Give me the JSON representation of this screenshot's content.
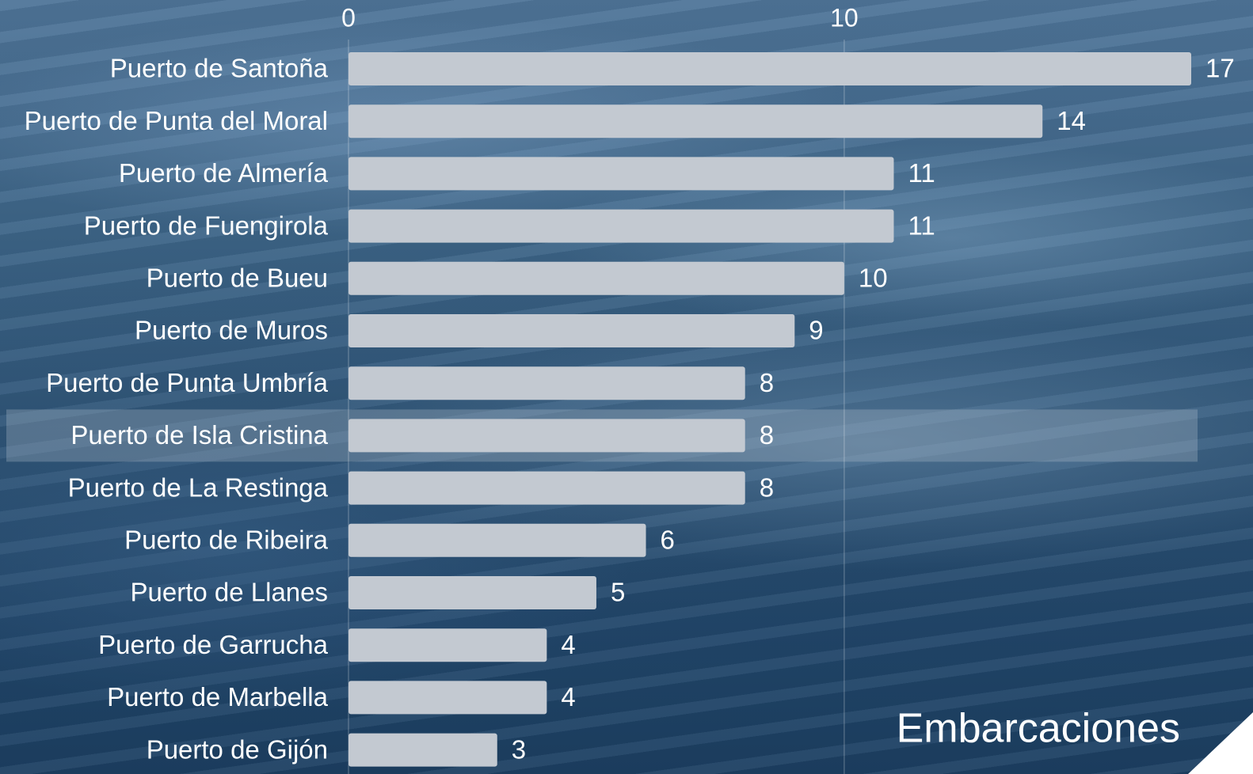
{
  "chart_data": {
    "type": "bar",
    "orientation": "horizontal",
    "x_axis_label": "Embarcaciones",
    "categories": [
      "Puerto de Santoña",
      "Puerto de Punta del Moral",
      "Puerto de Almería",
      "Puerto de Fuengirola",
      "Puerto de Bueu",
      "Puerto de Muros",
      "Puerto de Punta Umbría",
      "Puerto de Isla Cristina",
      "Puerto de La Restinga",
      "Puerto de Ribeira",
      "Puerto de Llanes",
      "Puerto de Garrucha",
      "Puerto de Marbella",
      "Puerto de Gijón"
    ],
    "values": [
      17,
      14,
      11,
      11,
      10,
      9,
      8,
      8,
      8,
      6,
      5,
      4,
      4,
      3
    ],
    "color": "#c3c9d1",
    "xlim": [
      0,
      17
    ],
    "xticks": [
      0,
      10
    ],
    "grid": true,
    "highlighted_category": 7
  }
}
